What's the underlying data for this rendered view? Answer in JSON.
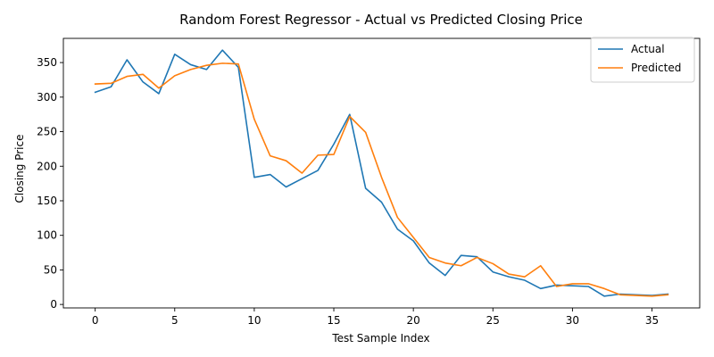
{
  "chart_data": {
    "type": "line",
    "title": "Random Forest Regressor - Actual vs Predicted Closing Price",
    "xlabel": "Test Sample Index",
    "ylabel": "Closing Price",
    "xlim": [
      -2,
      38
    ],
    "ylim": [
      -5,
      385
    ],
    "xticks": [
      0,
      5,
      10,
      15,
      20,
      25,
      30,
      35
    ],
    "yticks": [
      0,
      50,
      100,
      150,
      200,
      250,
      300,
      350
    ],
    "grid": false,
    "legend_position": "top-right",
    "x": [
      0,
      1,
      2,
      3,
      4,
      5,
      6,
      7,
      8,
      9,
      10,
      11,
      12,
      13,
      14,
      15,
      16,
      17,
      18,
      19,
      20,
      21,
      22,
      23,
      24,
      25,
      26,
      27,
      28,
      29,
      30,
      31,
      32,
      33,
      34,
      35,
      36
    ],
    "series": [
      {
        "name": "Actual",
        "color": "#1f77b4",
        "values": [
          307,
          315,
          354,
          322,
          305,
          362,
          347,
          340,
          368,
          343,
          184,
          188,
          170,
          182,
          194,
          232,
          275,
          168,
          148,
          109,
          92,
          60,
          42,
          71,
          69,
          47,
          40,
          35,
          23,
          28,
          27,
          26,
          12,
          15,
          14,
          13,
          15
        ]
      },
      {
        "name": "Predicted",
        "color": "#ff7f0e",
        "values": [
          319,
          320,
          330,
          333,
          313,
          331,
          340,
          346,
          349,
          348,
          268,
          215,
          208,
          190,
          216,
          217,
          272,
          249,
          184,
          126,
          97,
          68,
          60,
          56,
          68,
          59,
          44,
          40,
          56,
          26,
          30,
          30,
          23,
          14,
          13,
          12,
          14
        ]
      }
    ]
  }
}
